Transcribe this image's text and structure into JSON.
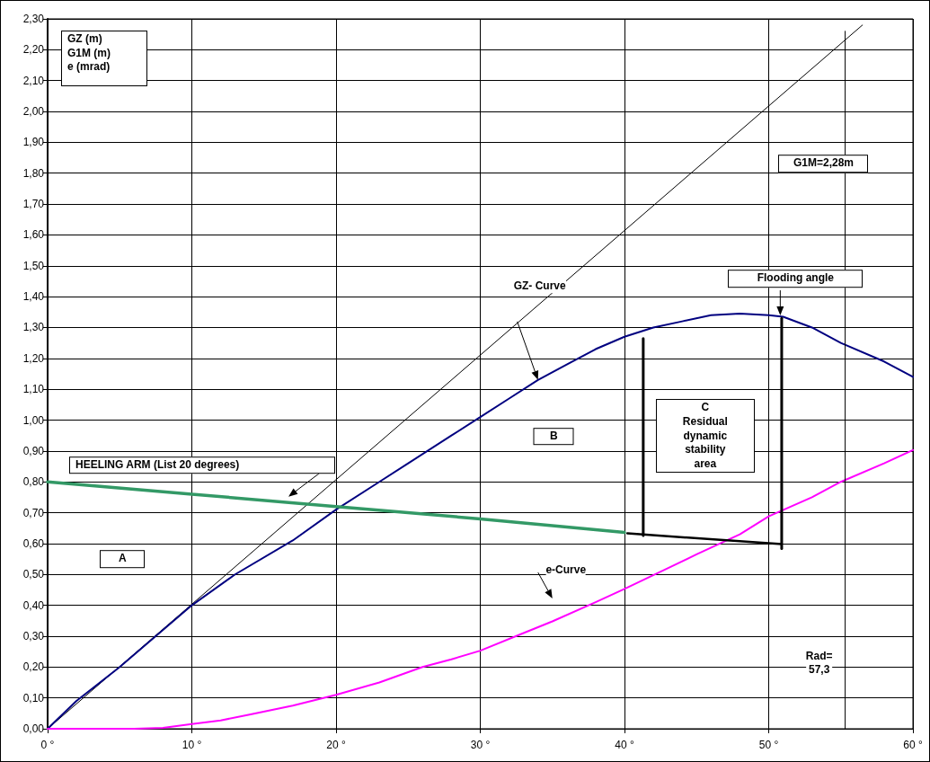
{
  "chart_data": {
    "type": "line",
    "ylabel": "GZ (m)\nG1M (m)\ne (mrad)",
    "xlim": [
      0,
      60
    ],
    "xticks": [
      {
        "value": 0,
        "label": "0 °"
      },
      {
        "value": 10,
        "label": "10 °"
      },
      {
        "value": 20,
        "label": "20 °"
      },
      {
        "value": 30,
        "label": "30 °"
      },
      {
        "value": 40,
        "label": "40 °"
      },
      {
        "value": 50,
        "label": "50 °"
      },
      {
        "value": 60,
        "label": "60 °"
      }
    ],
    "ylim": [
      0,
      2.3
    ],
    "yticks": [
      {
        "value": 0,
        "label": "0,00"
      },
      {
        "value": 0.1,
        "label": "0,10"
      },
      {
        "value": 0.2,
        "label": "0,20"
      },
      {
        "value": 0.3,
        "label": "0,30"
      },
      {
        "value": 0.4,
        "label": "0,40"
      },
      {
        "value": 0.5,
        "label": "0,50"
      },
      {
        "value": 0.6,
        "label": "0,60"
      },
      {
        "value": 0.7,
        "label": "0,70"
      },
      {
        "value": 0.8,
        "label": "0,80"
      },
      {
        "value": 0.9,
        "label": "0,90"
      },
      {
        "value": 1,
        "label": "1,00"
      },
      {
        "value": 1.1,
        "label": "1,10"
      },
      {
        "value": 1.2,
        "label": "1,20"
      },
      {
        "value": 1.3,
        "label": "1,30"
      },
      {
        "value": 1.4,
        "label": "1,40"
      },
      {
        "value": 1.5,
        "label": "1,50"
      },
      {
        "value": 1.6,
        "label": "1,60"
      },
      {
        "value": 1.7,
        "label": "1,70"
      },
      {
        "value": 1.8,
        "label": "1,80"
      },
      {
        "value": 1.9,
        "label": "1,90"
      },
      {
        "value": 2,
        "label": "2,00"
      },
      {
        "value": 2.1,
        "label": "2,10"
      },
      {
        "value": 2.2,
        "label": "2,20"
      },
      {
        "value": 2.3,
        "label": "2,30"
      }
    ],
    "grid": true,
    "marker": "none",
    "line_style": "solid",
    "series": [
      {
        "color": "#000000",
        "x": [
          0,
          56.5
        ],
        "values": [
          0,
          2.28
        ]
      },
      {
        "color": "#000080",
        "x": [
          0,
          2,
          5,
          10,
          13,
          17,
          20,
          23,
          25,
          28,
          30,
          32,
          34,
          36,
          38,
          40,
          42,
          44,
          46,
          48,
          50,
          51,
          53,
          55,
          58,
          60
        ],
        "values": [
          0,
          0.09,
          0.2,
          0.4,
          0.5,
          0.61,
          0.71,
          0.8,
          0.86,
          0.95,
          1.01,
          1.07,
          1.13,
          1.18,
          1.23,
          1.27,
          1.3,
          1.32,
          1.34,
          1.345,
          1.34,
          1.335,
          1.3,
          1.25,
          1.19,
          1.14
        ]
      },
      {
        "color": "#339966",
        "x": [
          0,
          10,
          20,
          30,
          40
        ],
        "values": [
          0.8,
          0.76,
          0.72,
          0.68,
          0.636
        ]
      },
      {
        "color": "#ff00ff",
        "x": [
          0,
          6,
          8,
          10,
          12,
          14,
          17,
          20,
          23,
          26,
          28,
          30,
          33,
          35,
          38,
          40,
          43,
          45,
          48,
          50,
          53,
          55,
          58,
          60
        ],
        "values": [
          0,
          0,
          0.003,
          0.015,
          0.027,
          0.046,
          0.075,
          0.11,
          0.15,
          0.2,
          0.225,
          0.253,
          0.31,
          0.348,
          0.41,
          0.453,
          0.52,
          0.565,
          0.63,
          0.688,
          0.75,
          0.8,
          0.86,
          0.903
        ]
      },
      {
        "color": "#000000",
        "x": [
          40.2,
          50.9
        ],
        "values": [
          0.633,
          0.598
        ]
      },
      {
        "color": "#000000",
        "x": [
          41.3,
          41.3
        ],
        "values": [
          0.626,
          1.264
        ]
      },
      {
        "color": "#000000",
        "x": [
          50.9,
          50.9
        ],
        "values": [
          0.584,
          1.33
        ]
      },
      {
        "color": "#000000",
        "x": [
          55.3,
          55.3
        ],
        "values": [
          0,
          2.26
        ]
      }
    ],
    "annotations": [
      "GZ- Curve",
      "HEELING ARM (List 20 degrees)",
      "A",
      "B",
      "C\nResidual\ndynamic\nstability\narea",
      {
        "text": "Flooding angle",
        "x": 50.8,
        "y": 1.339
      },
      "G1M=2,28m",
      "e-Curve",
      "Rad=\n57,3"
    ]
  }
}
